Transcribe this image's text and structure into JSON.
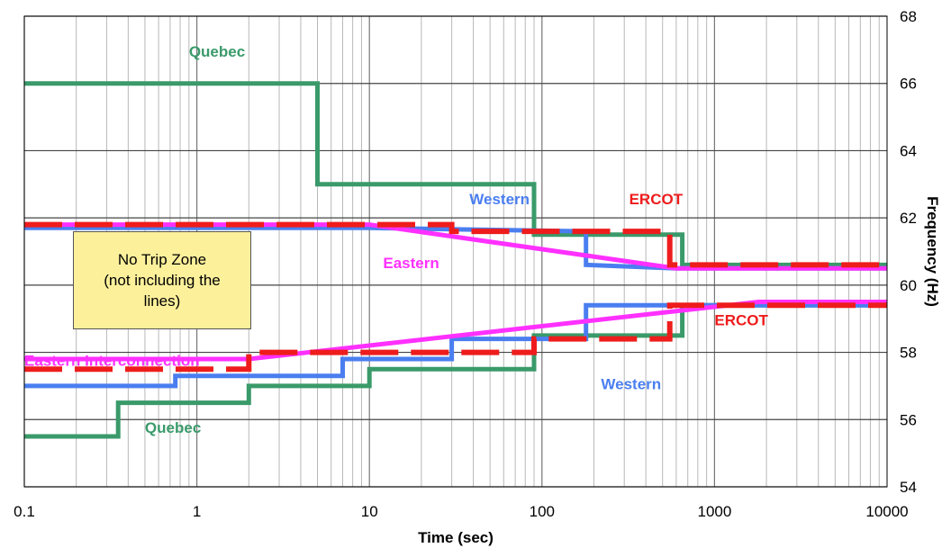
{
  "chart_data": {
    "type": "line",
    "title": "",
    "xlabel": "Time (sec)",
    "ylabel": "Frequency (Hz)",
    "x_scale": "log",
    "xlim": [
      0.1,
      10000
    ],
    "ylim": [
      54,
      68
    ],
    "x_ticks": [
      {
        "value": 0.1,
        "label": "0.1"
      },
      {
        "value": 1,
        "label": "1"
      },
      {
        "value": 10,
        "label": "10"
      },
      {
        "value": 100,
        "label": "100"
      },
      {
        "value": 1000,
        "label": "1000"
      },
      {
        "value": 10000,
        "label": "10000"
      }
    ],
    "y_ticks": [
      54,
      56,
      58,
      60,
      62,
      64,
      66,
      68
    ],
    "grid": "major and minor (log decades)",
    "colors": {
      "quebec": "#3a9a6a",
      "western": "#4a7ef0",
      "eastern": "#ff30ff",
      "ercot": "#ee1c1c"
    },
    "series": [
      {
        "name": "Quebec",
        "key": "quebec",
        "style": "solid",
        "x": [
          0.1,
          5,
          5,
          90,
          90,
          650,
          650,
          10000
        ],
        "y": [
          66,
          66,
          63,
          63,
          61.5,
          61.5,
          60.6,
          60.6
        ]
      },
      {
        "name": "Western",
        "key": "western",
        "style": "solid",
        "x": [
          0.1,
          10,
          180,
          180,
          600,
          10000
        ],
        "y": [
          61.7,
          61.7,
          61.6,
          60.6,
          60.5,
          60.5
        ]
      },
      {
        "name": "Eastern",
        "key": "eastern",
        "style": "solid",
        "x": [
          0.1,
          10,
          600,
          10000
        ],
        "y": [
          61.8,
          61.8,
          60.5,
          60.5
        ]
      },
      {
        "name": "ERCOT",
        "key": "ercot",
        "style": "dashed",
        "x": [
          0.1,
          30,
          30,
          550,
          550,
          10000
        ],
        "y": [
          61.8,
          61.8,
          61.6,
          61.6,
          60.6,
          60.6
        ]
      },
      {
        "name": "Quebec",
        "key": "quebec",
        "style": "solid",
        "x": [
          0.1,
          0.35,
          0.35,
          2,
          2,
          10,
          10,
          90,
          90,
          650,
          650,
          10000
        ],
        "y": [
          55.5,
          55.5,
          56.5,
          56.5,
          57,
          57,
          57.5,
          57.5,
          58.5,
          58.5,
          59.4,
          59.4
        ]
      },
      {
        "name": "Western",
        "key": "western",
        "style": "solid",
        "x": [
          0.1,
          0.75,
          0.75,
          7,
          7,
          30,
          30,
          180,
          180,
          10000
        ],
        "y": [
          57,
          57,
          57.3,
          57.3,
          57.8,
          57.8,
          58.4,
          58.4,
          59.4,
          59.4
        ]
      },
      {
        "name": "Eastern Interconnection",
        "key": "eastern",
        "style": "solid",
        "x": [
          0.1,
          2,
          1800,
          10000
        ],
        "y": [
          57.8,
          57.8,
          59.5,
          59.5
        ]
      },
      {
        "name": "ERCOT",
        "key": "ercot",
        "style": "dashed",
        "x": [
          0.1,
          2,
          2,
          10,
          10,
          90,
          90,
          550,
          550,
          10000
        ],
        "y": [
          57.5,
          57.5,
          58,
          58,
          58,
          58,
          58.4,
          58.4,
          59.4,
          59.4
        ]
      }
    ],
    "annotations": [
      {
        "text": "Quebec",
        "key": "quebec",
        "x": 0.9,
        "y": 66.8
      },
      {
        "text": "Western",
        "key": "western",
        "x": 38,
        "y": 62.4
      },
      {
        "text": "ERCOT",
        "key": "ercot",
        "x": 320,
        "y": 62.4
      },
      {
        "text": "Eastern",
        "key": "eastern",
        "x": 12,
        "y": 60.5
      },
      {
        "text": "ERCOT",
        "key": "ercot",
        "x": 1000,
        "y": 58.8
      },
      {
        "text": "Eastern Interconnection",
        "key": "eastern",
        "x": 0.1,
        "y": 57.6
      },
      {
        "text": "Western",
        "key": "western",
        "x": 220,
        "y": 56.9
      },
      {
        "text": "Quebec",
        "key": "quebec",
        "x": 0.5,
        "y": 55.6
      }
    ],
    "note": "No Trip Zone\n(not including the\nlines)"
  }
}
